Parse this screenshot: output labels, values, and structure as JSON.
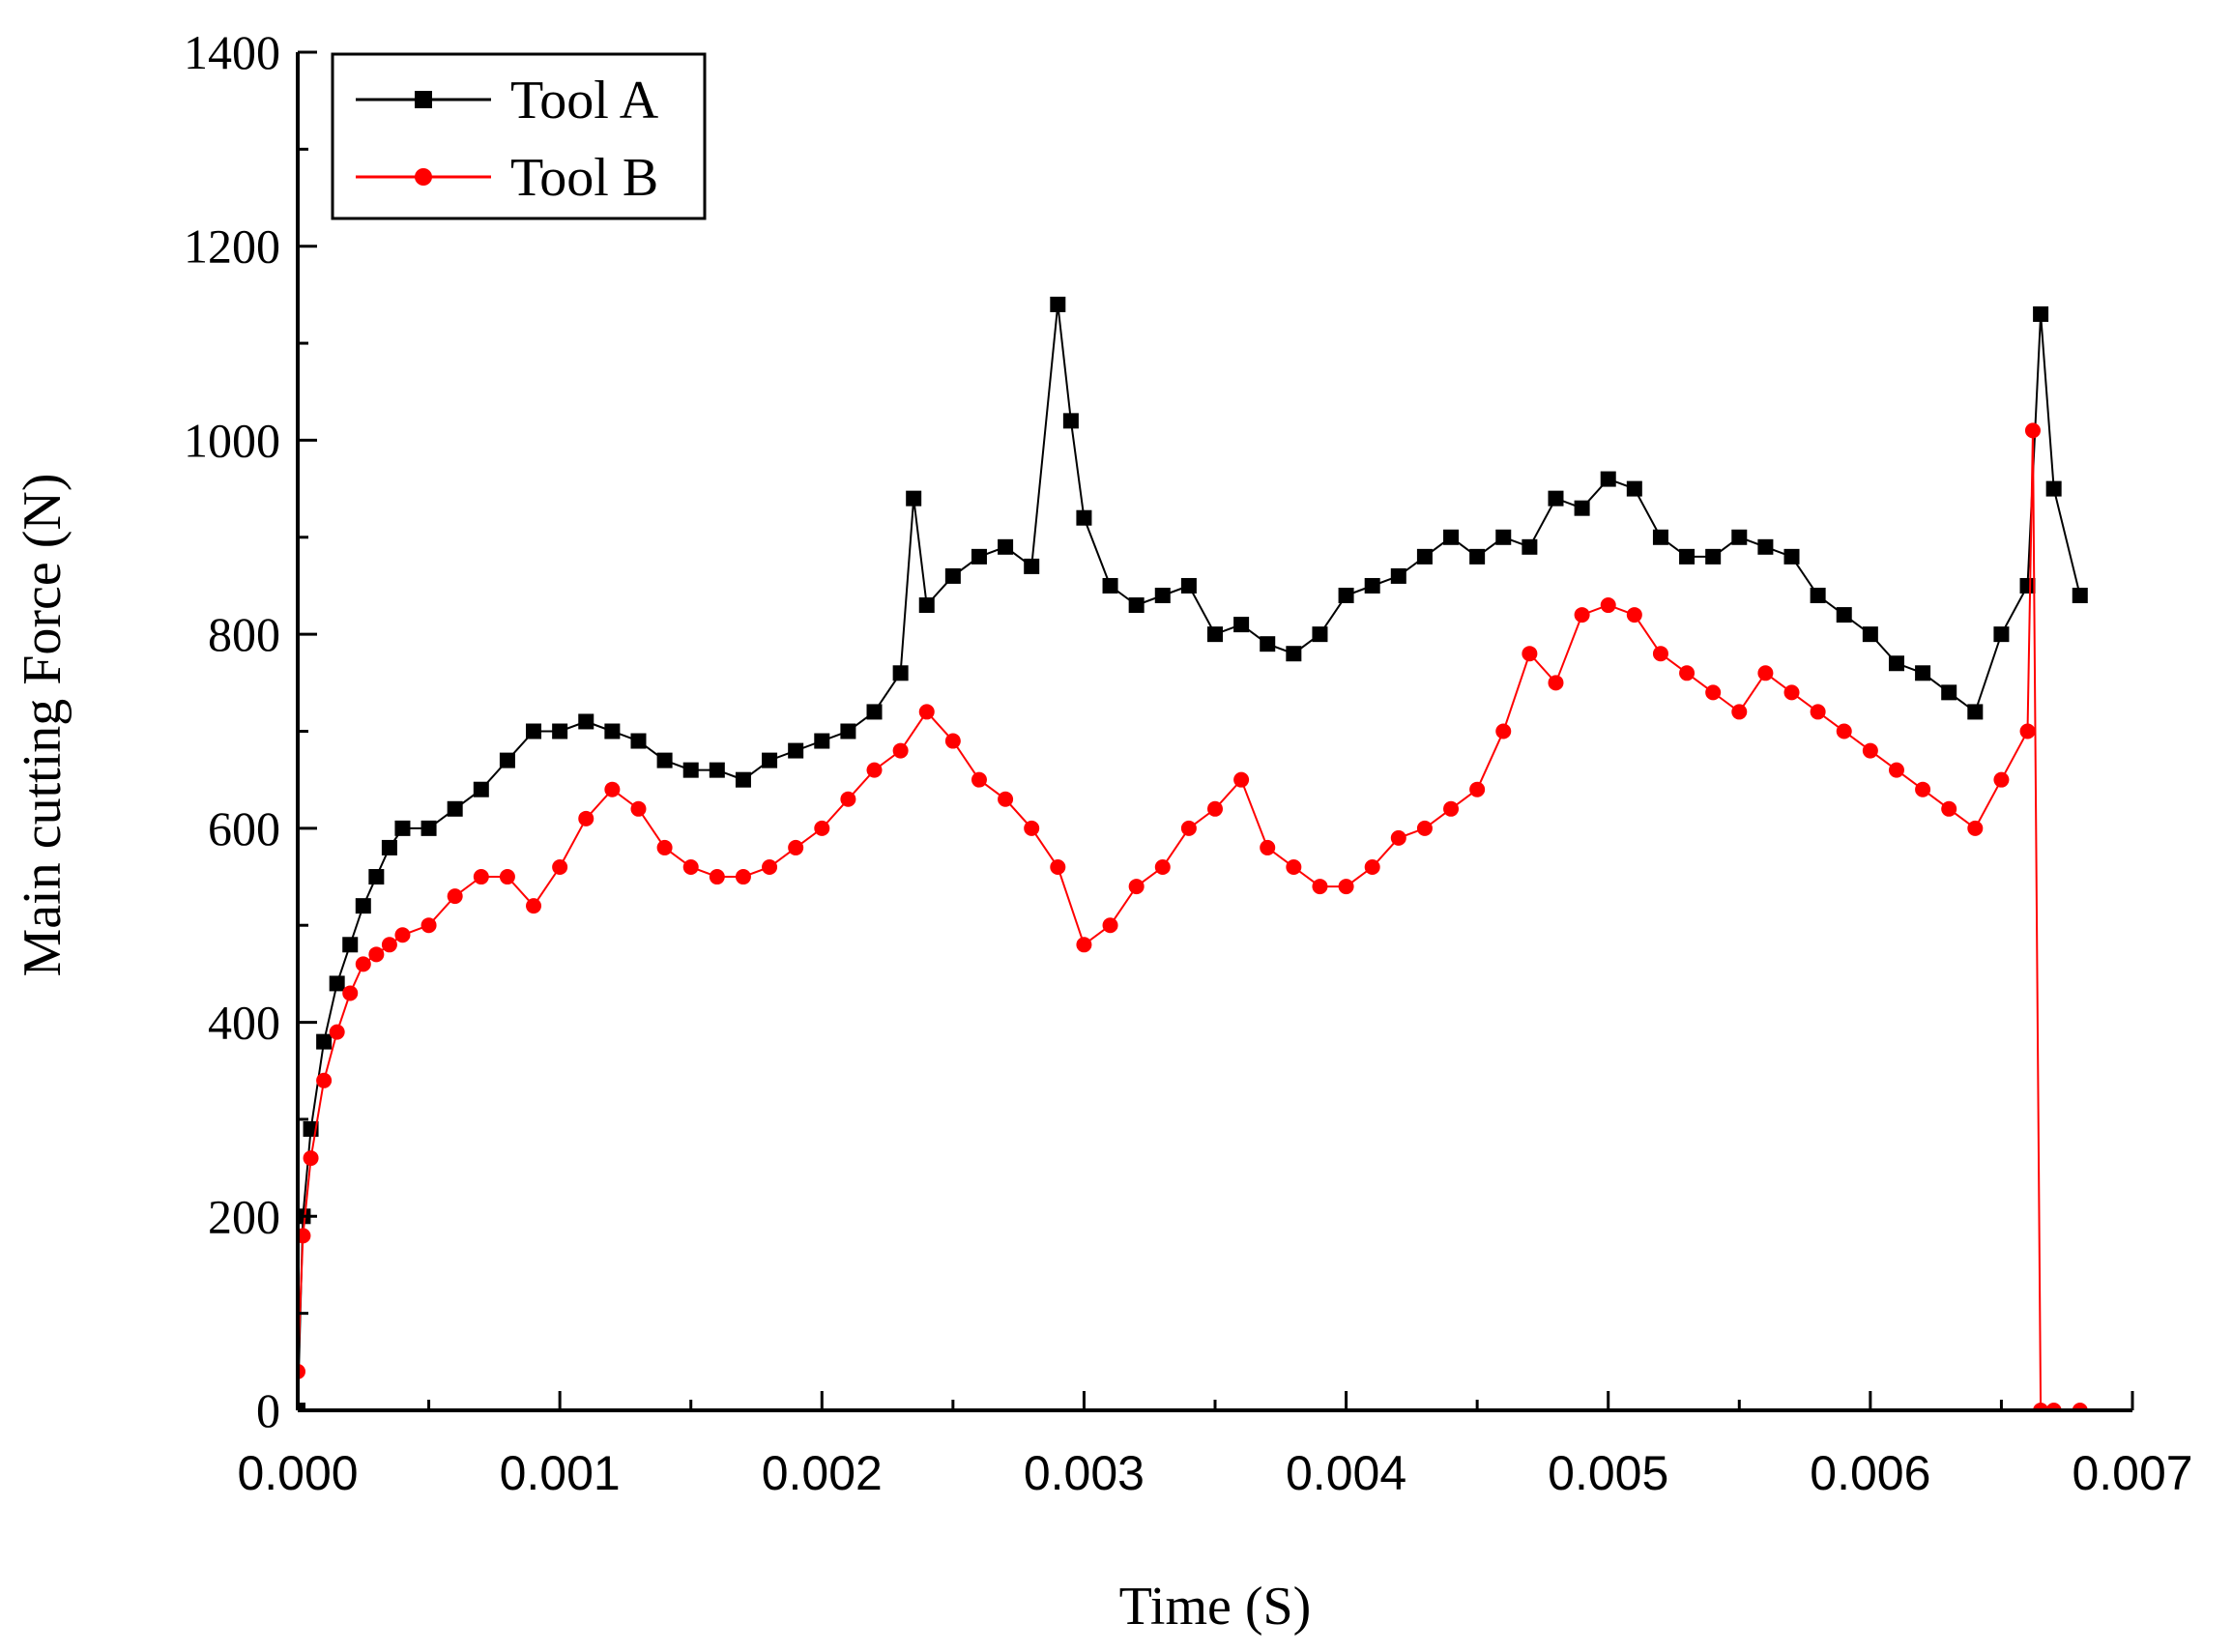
{
  "chart_data": {
    "type": "scatter",
    "xlabel": "Time  (S)",
    "ylabel": "Main cutting Force  (N)",
    "xlim": [
      0,
      0.007
    ],
    "ylim": [
      0,
      1400
    ],
    "xticks": [
      "0.000",
      "0.001",
      "0.002",
      "0.003",
      "0.004",
      "0.005",
      "0.006",
      "0.007"
    ],
    "yticks": [
      "0",
      "200",
      "400",
      "600",
      "800",
      "1000",
      "1200",
      "1400"
    ],
    "legend_position": "top-left",
    "series": [
      {
        "name": "Tool A",
        "color": "#000000",
        "marker": "square",
        "x": [
          0,
          2e-05,
          5e-05,
          0.0001,
          0.00015,
          0.0002,
          0.00025,
          0.0003,
          0.00035,
          0.0004,
          0.0005,
          0.0006,
          0.0007,
          0.0008,
          0.0009,
          0.001,
          0.0011,
          0.0012,
          0.0013,
          0.0014,
          0.0015,
          0.0016,
          0.0017,
          0.0018,
          0.0019,
          0.002,
          0.0021,
          0.0022,
          0.0023,
          0.00235,
          0.0024,
          0.0025,
          0.0026,
          0.0027,
          0.0028,
          0.0029,
          0.00295,
          0.003,
          0.0031,
          0.0032,
          0.0033,
          0.0034,
          0.0035,
          0.0036,
          0.0037,
          0.0038,
          0.0039,
          0.004,
          0.0041,
          0.0042,
          0.0043,
          0.0044,
          0.0045,
          0.0046,
          0.0047,
          0.0048,
          0.0049,
          0.005,
          0.0051,
          0.0052,
          0.0053,
          0.0054,
          0.0055,
          0.0056,
          0.0057,
          0.0058,
          0.0059,
          0.006,
          0.0061,
          0.0062,
          0.0063,
          0.0064,
          0.0065,
          0.0066,
          0.00665,
          0.0067,
          0.0068
        ],
        "values": [
          0,
          200,
          290,
          380,
          440,
          480,
          520,
          550,
          580,
          600,
          600,
          620,
          640,
          670,
          700,
          700,
          710,
          700,
          690,
          670,
          660,
          660,
          650,
          670,
          680,
          690,
          700,
          720,
          760,
          940,
          830,
          860,
          880,
          890,
          870,
          1140,
          1020,
          920,
          850,
          830,
          840,
          850,
          800,
          810,
          790,
          780,
          800,
          840,
          850,
          860,
          880,
          900,
          880,
          900,
          890,
          940,
          930,
          960,
          950,
          900,
          880,
          880,
          900,
          890,
          880,
          840,
          820,
          800,
          770,
          760,
          740,
          720,
          800,
          850,
          1130,
          950,
          840
        ]
      },
      {
        "name": "Tool B",
        "color": "#ff0000",
        "marker": "circle",
        "x": [
          0,
          2e-05,
          5e-05,
          0.0001,
          0.00015,
          0.0002,
          0.00025,
          0.0003,
          0.00035,
          0.0004,
          0.0005,
          0.0006,
          0.0007,
          0.0008,
          0.0009,
          0.001,
          0.0011,
          0.0012,
          0.0013,
          0.0014,
          0.0015,
          0.0016,
          0.0017,
          0.0018,
          0.0019,
          0.002,
          0.0021,
          0.0022,
          0.0023,
          0.0024,
          0.0025,
          0.0026,
          0.0027,
          0.0028,
          0.0029,
          0.003,
          0.0031,
          0.0032,
          0.0033,
          0.0034,
          0.0035,
          0.0036,
          0.0037,
          0.0038,
          0.0039,
          0.004,
          0.0041,
          0.0042,
          0.0043,
          0.0044,
          0.0045,
          0.0046,
          0.0047,
          0.0048,
          0.0049,
          0.005,
          0.0051,
          0.0052,
          0.0053,
          0.0054,
          0.0055,
          0.0056,
          0.0057,
          0.0058,
          0.0059,
          0.006,
          0.0061,
          0.0062,
          0.0063,
          0.0064,
          0.0065,
          0.0066,
          0.00662,
          0.00665,
          0.0067,
          0.0068
        ],
        "values": [
          40,
          180,
          260,
          340,
          390,
          430,
          460,
          470,
          480,
          490,
          500,
          530,
          550,
          550,
          520,
          560,
          610,
          640,
          620,
          580,
          560,
          550,
          550,
          560,
          580,
          600,
          630,
          660,
          680,
          720,
          690,
          650,
          630,
          600,
          560,
          480,
          500,
          540,
          560,
          600,
          620,
          650,
          580,
          560,
          540,
          540,
          560,
          590,
          600,
          620,
          640,
          700,
          780,
          750,
          820,
          830,
          820,
          780,
          760,
          740,
          720,
          760,
          740,
          720,
          700,
          680,
          660,
          640,
          620,
          600,
          650,
          700,
          1010,
          0,
          0,
          0
        ]
      }
    ]
  }
}
